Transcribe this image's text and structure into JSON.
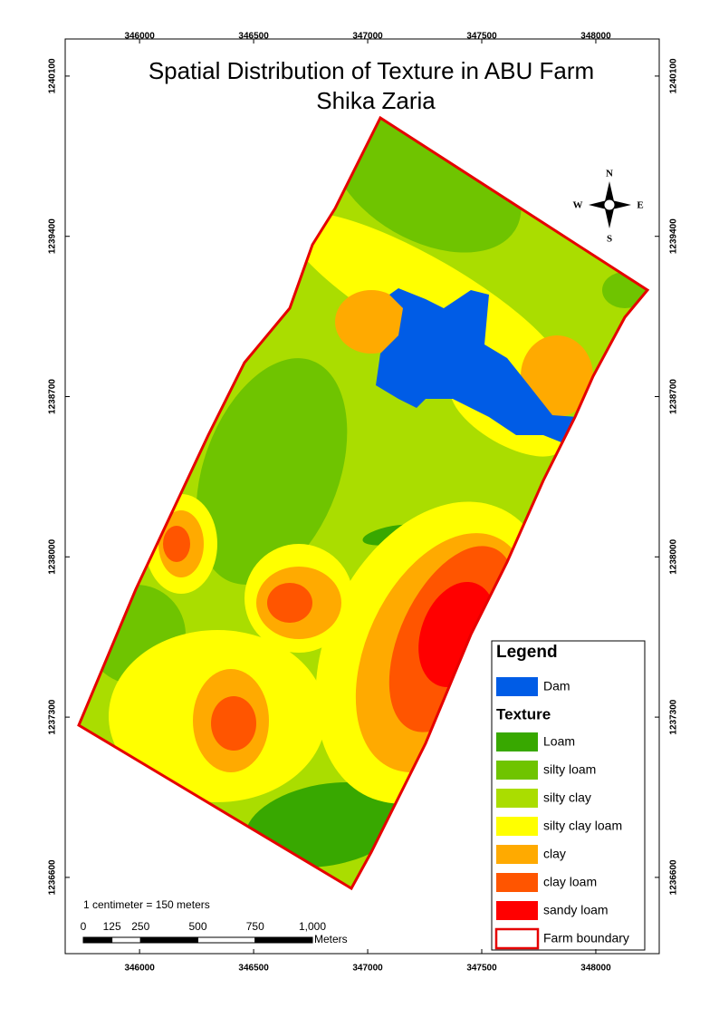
{
  "title_lines": [
    "Spatial Distribution of Texture in ABU Farm",
    "Shika Zaria"
  ],
  "map": {
    "xlim": [
      345674,
      348278
    ],
    "ylim": [
      1236267,
      1240262
    ],
    "xticks": [
      346000,
      346500,
      347000,
      347500,
      348000
    ],
    "yticks": [
      1236600,
      1237300,
      1238000,
      1238700,
      1239400,
      1240100
    ]
  },
  "compass": {
    "n": "N",
    "s": "S",
    "e": "E",
    "w": "W"
  },
  "scale": {
    "text": "1 centimeter = 150 meters",
    "unit": "Meters",
    "ticks": [
      0,
      125,
      250,
      500,
      750,
      {
        "value": 1000,
        "label": "1,000"
      }
    ]
  },
  "legend": {
    "title": "Legend",
    "dam": {
      "label": "Dam",
      "color": "#005ce6"
    },
    "texture_title": "Texture",
    "items": [
      {
        "label": "Loam",
        "color": "#38a800"
      },
      {
        "label": "silty loam",
        "color": "#6fc400"
      },
      {
        "label": "silty clay",
        "color": "#aadd00"
      },
      {
        "label": "silty clay loam",
        "color": "#ffff00"
      },
      {
        "label": "clay",
        "color": "#ffaa00"
      },
      {
        "label": "clay loam",
        "color": "#ff5500"
      },
      {
        "label": "sandy loam",
        "color": "#ff0000"
      }
    ],
    "boundary": {
      "label": "Farm boundary",
      "color": "#e60000"
    }
  }
}
